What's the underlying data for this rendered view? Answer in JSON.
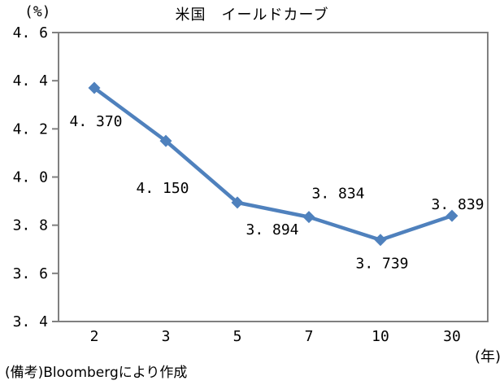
{
  "header": {
    "percent_label": "(%)",
    "title": "米国　イールドカーブ"
  },
  "footer": {
    "x_unit_label": "(年)",
    "note": "(備考)Bloombergにより作成"
  },
  "chart_data": {
    "type": "line",
    "title": "米国　イールドカーブ",
    "x": [
      "2",
      "3",
      "5",
      "7",
      "10",
      "30"
    ],
    "values": [
      4.37,
      4.15,
      3.894,
      3.834,
      3.739,
      3.839
    ],
    "point_labels": [
      "4. 370",
      "4. 150",
      "3. 894",
      "3. 834",
      "3. 739",
      "3. 839"
    ],
    "ylim": [
      3.4,
      4.6
    ],
    "yticks": [
      4.6,
      4.4,
      4.2,
      4.0,
      3.8,
      3.6,
      3.4
    ],
    "ytick_labels": [
      "4. 6",
      "4. 4",
      "4. 2",
      "4. 0",
      "3. 8",
      "3. 6",
      "3. 4"
    ],
    "ylabel": "(%)",
    "xlabel": "(年)",
    "grid": false,
    "legend": "none",
    "series_color": "#4F81BD",
    "axis_color": "#808080",
    "note": "(備考)Bloombergにより作成"
  }
}
